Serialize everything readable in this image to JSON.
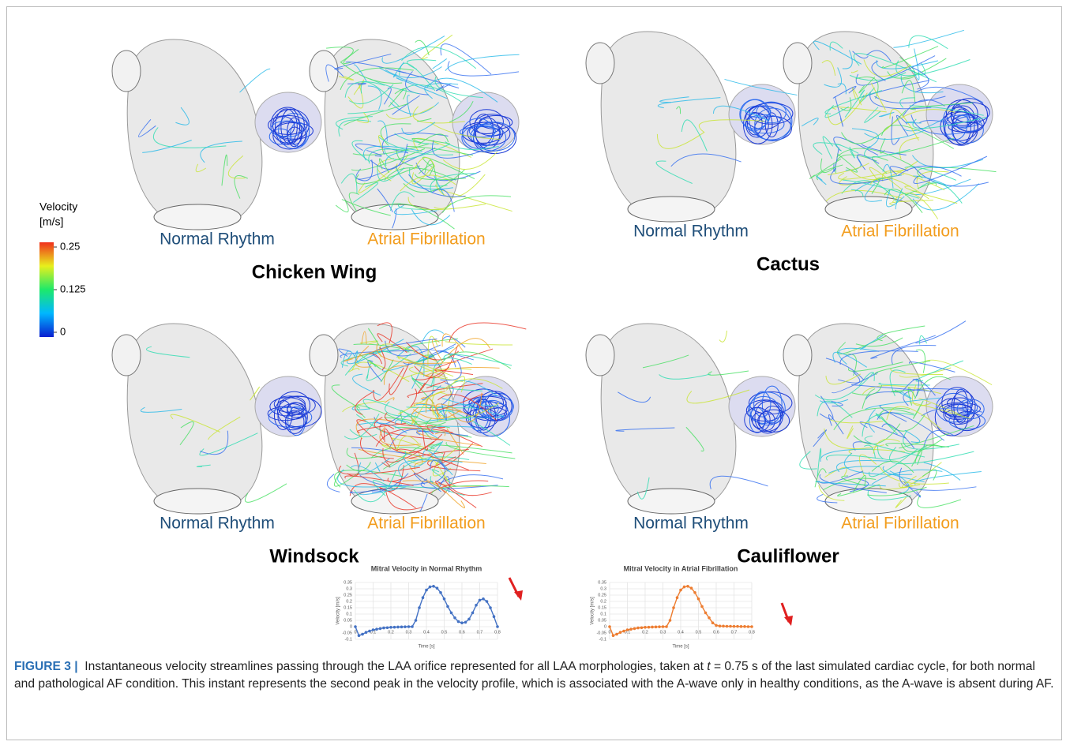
{
  "colorbar": {
    "label": "Velocity",
    "unit": "[m/s]",
    "lim": [
      0,
      0.25
    ],
    "ticks": [
      0.25,
      0.125,
      0
    ]
  },
  "panels": [
    {
      "name": "Chicken Wing",
      "left_label": "Normal Rhythm",
      "right_label": "Atrial Fibrillation"
    },
    {
      "name": "Cactus",
      "left_label": "Normal Rhythm",
      "right_label": "Atrial Fibrillation"
    },
    {
      "name": "Windsock",
      "left_label": "Normal Rhythm",
      "right_label": "Atrial Fibrillation"
    },
    {
      "name": "Cauliflower",
      "left_label": "Normal Rhythm",
      "right_label": "Atrial Fibrillation"
    }
  ],
  "charts": [
    {
      "type": "line",
      "title": "Mitral Velocity in Normal Rhythm",
      "xlabel": "Time [s]",
      "ylabel": "Velocity [m/s]",
      "xlim": [
        0,
        0.8
      ],
      "ylim": [
        -0.1,
        0.35
      ],
      "xticks": [
        0,
        0.1,
        0.2,
        0.3,
        0.4,
        0.5,
        0.6,
        0.7,
        0.8
      ],
      "yticks": [
        -0.1,
        -0.05,
        0,
        0.05,
        0.1,
        0.15,
        0.2,
        0.25,
        0.3,
        0.35
      ],
      "grid": true,
      "x": [
        0,
        0.02,
        0.04,
        0.06,
        0.08,
        0.1,
        0.12,
        0.14,
        0.16,
        0.18,
        0.2,
        0.22,
        0.24,
        0.26,
        0.28,
        0.3,
        0.32,
        0.34,
        0.36,
        0.38,
        0.4,
        0.42,
        0.44,
        0.46,
        0.48,
        0.5,
        0.52,
        0.54,
        0.56,
        0.58,
        0.6,
        0.62,
        0.64,
        0.66,
        0.68,
        0.7,
        0.72,
        0.74,
        0.76,
        0.78,
        0.8
      ],
      "series": [
        {
          "color": "#4472c4",
          "values": [
            0,
            -0.07,
            -0.06,
            -0.045,
            -0.035,
            -0.025,
            -0.02,
            -0.015,
            -0.01,
            -0.008,
            -0.005,
            -0.004,
            -0.003,
            -0.002,
            -0.001,
            0,
            0,
            0.05,
            0.15,
            0.23,
            0.29,
            0.315,
            0.32,
            0.305,
            0.27,
            0.22,
            0.16,
            0.11,
            0.07,
            0.04,
            0.03,
            0.035,
            0.06,
            0.11,
            0.17,
            0.21,
            0.22,
            0.2,
            0.15,
            0.08,
            0
          ]
        }
      ]
    },
    {
      "type": "line",
      "title": "Mitral Velocity in Atrial Fibrillation",
      "xlabel": "Time [s]",
      "ylabel": "Velocity [m/s]",
      "xlim": [
        0,
        0.8
      ],
      "ylim": [
        -0.1,
        0.35
      ],
      "xticks": [
        0,
        0.1,
        0.2,
        0.3,
        0.4,
        0.5,
        0.6,
        0.7,
        0.8
      ],
      "yticks": [
        -0.1,
        -0.05,
        0,
        0.05,
        0.1,
        0.15,
        0.2,
        0.25,
        0.3,
        0.35
      ],
      "grid": true,
      "x": [
        0,
        0.02,
        0.04,
        0.06,
        0.08,
        0.1,
        0.12,
        0.14,
        0.16,
        0.18,
        0.2,
        0.22,
        0.24,
        0.26,
        0.28,
        0.3,
        0.32,
        0.34,
        0.36,
        0.38,
        0.4,
        0.42,
        0.44,
        0.46,
        0.48,
        0.5,
        0.52,
        0.54,
        0.56,
        0.58,
        0.6,
        0.62,
        0.64,
        0.66,
        0.68,
        0.7,
        0.72,
        0.74,
        0.76,
        0.78,
        0.8
      ],
      "series": [
        {
          "color": "#ed7d31",
          "values": [
            0,
            -0.07,
            -0.06,
            -0.045,
            -0.035,
            -0.025,
            -0.02,
            -0.015,
            -0.01,
            -0.008,
            -0.005,
            -0.004,
            -0.003,
            -0.002,
            -0.001,
            0,
            0,
            0.05,
            0.15,
            0.23,
            0.29,
            0.315,
            0.32,
            0.305,
            0.27,
            0.22,
            0.16,
            0.11,
            0.07,
            0.03,
            0.01,
            0.005,
            0.004,
            0.003,
            0.003,
            0.002,
            0.002,
            0.001,
            0.001,
            0,
            0
          ]
        }
      ]
    }
  ],
  "caption": {
    "label": "FIGURE 3 |",
    "before": "Instantaneous velocity streamlines passing through the LAA orifice represented for all LAA morphologies, taken at",
    "variable": "t",
    "after": "= 0.75 s of the last simulated cardiac cycle, for both normal and pathological AF condition. This instant represents the second peak in the velocity profile, which is associated with the A-wave only in healthy conditions, as the A-wave is absent during AF."
  }
}
